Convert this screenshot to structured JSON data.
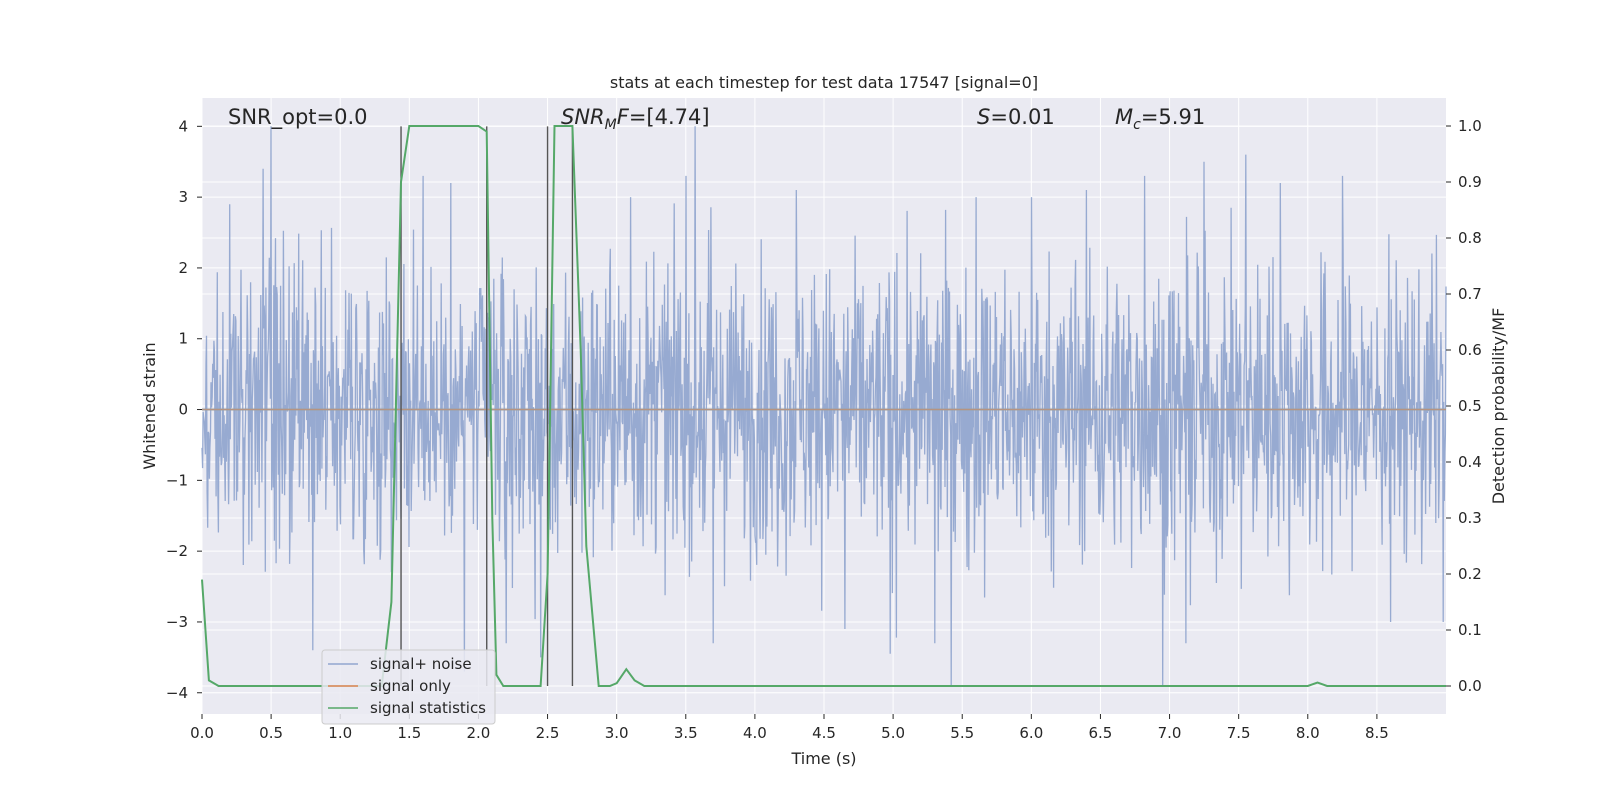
{
  "chart_data": {
    "type": "line",
    "title": "stats at each timestep for test data 17547 [signal=0]",
    "xlabel": "Time (s)",
    "ylabel": "Whitened strain",
    "ylabel_right": "Detection probability/MF",
    "xlim": [
      0.0,
      9.0
    ],
    "ylim": [
      -4.3,
      4.4
    ],
    "ylim_right": [
      -0.05,
      1.05
    ],
    "x_ticks": [
      0.0,
      0.5,
      1.0,
      1.5,
      2.0,
      2.5,
      3.0,
      3.5,
      4.0,
      4.5,
      5.0,
      5.5,
      6.0,
      6.5,
      7.0,
      7.5,
      8.0,
      8.5
    ],
    "x_tick_labels": [
      "0.0",
      "0.5",
      "1.0",
      "1.5",
      "2.0",
      "2.5",
      "3.0",
      "3.5",
      "4.0",
      "4.5",
      "5.0",
      "5.5",
      "6.0",
      "6.5",
      "7.0",
      "7.5",
      "8.0",
      "8.5"
    ],
    "y_ticks": [
      4,
      3,
      2,
      1,
      0,
      -1,
      -2,
      -3,
      -4
    ],
    "y_tick_labels": [
      "4",
      "3",
      "2",
      "1",
      "0",
      "−1",
      "−2",
      "−3",
      "−4"
    ],
    "y_right_ticks": [
      1.0,
      0.9,
      0.8,
      0.7,
      0.6,
      0.5,
      0.4,
      0.3,
      0.2,
      0.1,
      0.0
    ],
    "y_right_tick_labels": [
      "1.0",
      "0.9",
      "0.8",
      "0.7",
      "0.6",
      "0.5",
      "0.4",
      "0.3",
      "0.2",
      "0.1",
      "0.0"
    ],
    "grid": true,
    "legend": "bottom-left",
    "annotations": {
      "snr_opt": "SNR_opt=0.0",
      "snr_mf_var": "SNR",
      "snr_mf_sub": "M",
      "snr_mf_var2": "F",
      "snr_mf_value": "=[4.74]",
      "s_var": "S",
      "s_value": "=0.01",
      "mc_var": "M",
      "mc_sub": "c",
      "mc_value": "=5.91"
    },
    "series": [
      {
        "name": "signal+ noise",
        "color": "#92a6cf",
        "kind": "noise",
        "x_range": [
          0.0,
          9.0
        ],
        "typical_amplitude": 1.6,
        "max": 4.0,
        "min": -3.9,
        "spikes": [
          [
            0.5,
            4.0
          ],
          [
            0.44,
            3.4
          ],
          [
            0.2,
            2.9
          ],
          [
            0.8,
            -3.4
          ],
          [
            1.6,
            3.3
          ],
          [
            1.8,
            3.2
          ],
          [
            1.9,
            -3.7
          ],
          [
            2.2,
            -3.3
          ],
          [
            2.45,
            -3.5
          ],
          [
            3.1,
            3.0
          ],
          [
            3.5,
            3.3
          ],
          [
            3.7,
            -3.3
          ],
          [
            4.3,
            3.1
          ],
          [
            4.65,
            -3.1
          ],
          [
            4.98,
            -3.45
          ],
          [
            5.3,
            -3.3
          ],
          [
            5.6,
            3.0
          ],
          [
            6.0,
            3.0
          ],
          [
            6.4,
            3.1
          ],
          [
            6.82,
            3.3
          ],
          [
            6.95,
            -3.9
          ],
          [
            7.12,
            -3.3
          ],
          [
            7.25,
            3.5
          ],
          [
            7.55,
            3.6
          ],
          [
            7.8,
            3.2
          ],
          [
            8.25,
            3.3
          ],
          [
            8.6,
            -3.0
          ],
          [
            8.98,
            -3.0
          ]
        ]
      },
      {
        "name": "signal only",
        "color": "#dd8452",
        "x": [
          0.0,
          9.0
        ],
        "y": [
          0.0,
          0.0
        ]
      },
      {
        "name": "signal statistics",
        "color": "#55a868",
        "axis": "right",
        "x": [
          0.0,
          0.05,
          0.12,
          1.3,
          1.37,
          1.44,
          1.5,
          2.0,
          2.06,
          2.1,
          2.13,
          2.18,
          2.45,
          2.5,
          2.55,
          2.68,
          2.74,
          2.78,
          2.87,
          2.95,
          3.0,
          3.07,
          3.13,
          3.2,
          8.0,
          8.07,
          8.14,
          9.0
        ],
        "y": [
          0.19,
          0.01,
          0.0,
          0.0,
          0.15,
          0.9,
          1.0,
          1.0,
          0.99,
          0.3,
          0.02,
          0.0,
          0.0,
          0.2,
          1.0,
          1.0,
          0.6,
          0.25,
          0.0,
          0.0,
          0.005,
          0.03,
          0.01,
          0.0,
          0.0,
          0.006,
          0.0,
          0.0
        ]
      }
    ],
    "markers": {
      "color": "#555555",
      "x": [
        1.44,
        2.06,
        2.5,
        2.68
      ],
      "y_range": [
        -4.3,
        4.0
      ]
    }
  }
}
